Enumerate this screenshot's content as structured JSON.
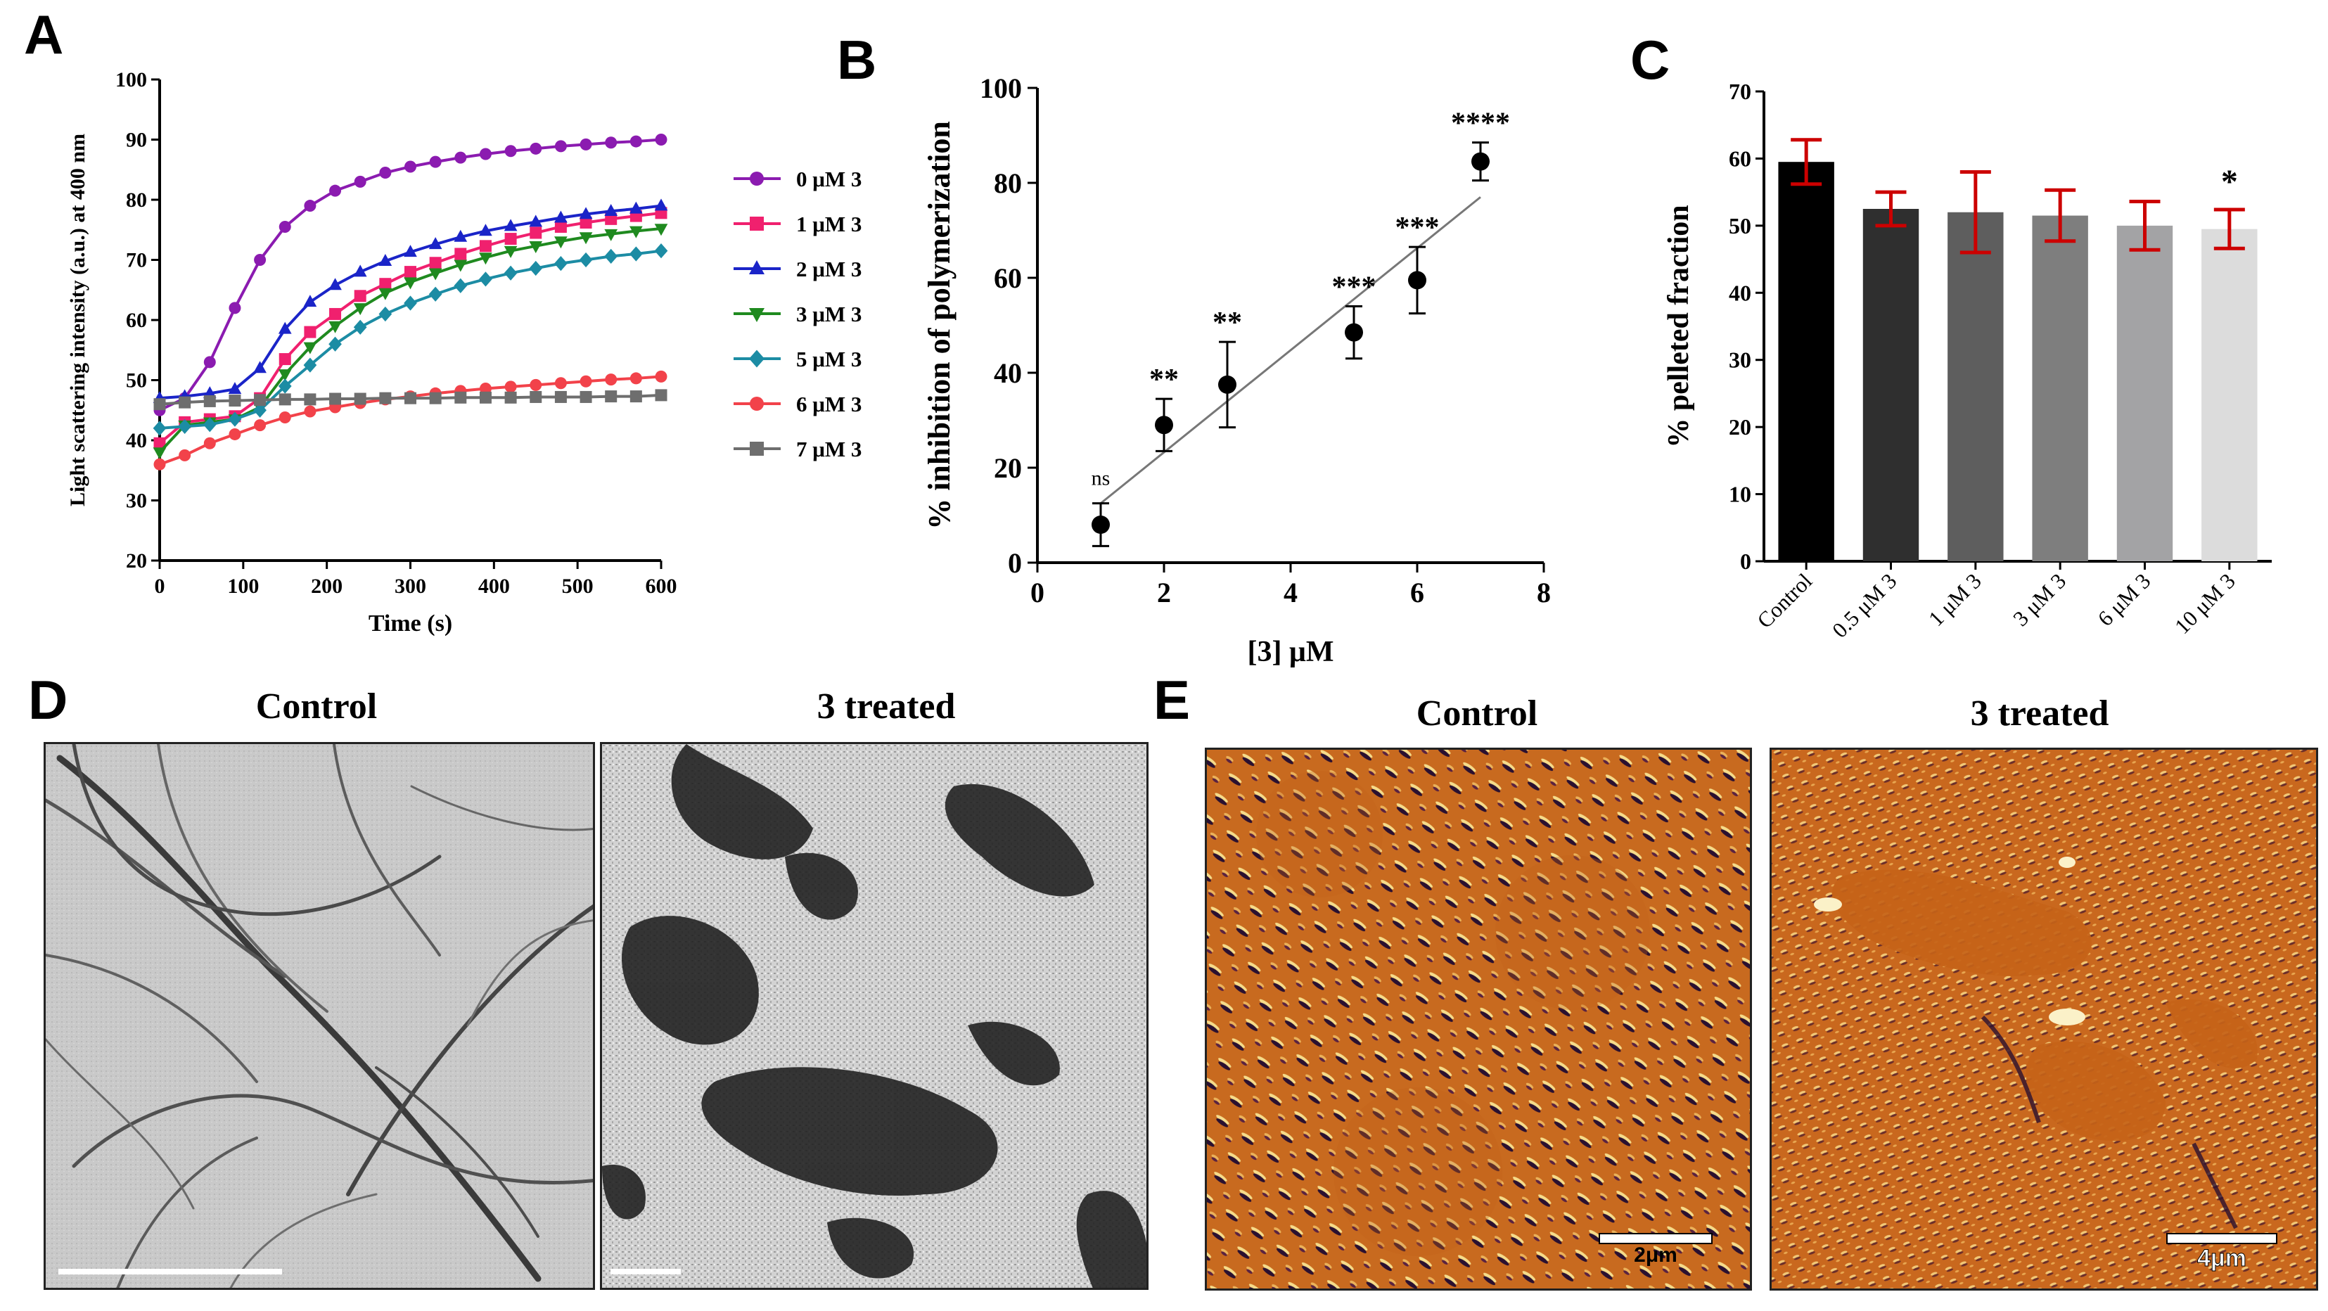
{
  "colors": {
    "series": [
      "#8B1BB0",
      "#F0206E",
      "#1A24C8",
      "#1F8A1F",
      "#1C8CA4",
      "#F2424A",
      "#6E6E6E"
    ],
    "bars": [
      "#000000",
      "#2F2F2F",
      "#5E5E5E",
      "#7E7E7E",
      "#A3A3A5",
      "#DCDCDC"
    ],
    "errorbar_c": "#CC0000",
    "afm_base": "#C9681E"
  },
  "panels": {
    "A": "A",
    "B": "B",
    "C": "C",
    "D": "D",
    "E": "E"
  },
  "panelD": {
    "left_title": "Control",
    "right_title": "3 treated"
  },
  "panelE": {
    "left_title": "Control",
    "right_title": "3 treated",
    "left_scale": "2μm",
    "right_scale": "4μm"
  },
  "chart_data": [
    {
      "id": "A",
      "type": "line",
      "xlabel": "Time (s)",
      "ylabel": "Light scattering intensity (a.u.) at 400 nm",
      "xlim": [
        0,
        600
      ],
      "ylim": [
        20,
        100
      ],
      "xticks": [
        0,
        100,
        200,
        300,
        400,
        500,
        600
      ],
      "yticks": [
        20,
        30,
        40,
        50,
        60,
        70,
        80,
        90,
        100
      ],
      "x": [
        0,
        30,
        60,
        90,
        120,
        150,
        180,
        210,
        240,
        270,
        300,
        330,
        360,
        390,
        420,
        450,
        480,
        510,
        540,
        570,
        600
      ],
      "series": [
        {
          "name": "0 μM 3",
          "marker": "circle",
          "values": [
            45,
            47,
            53,
            62,
            70,
            75.5,
            79,
            81.5,
            83,
            84.5,
            85.5,
            86.3,
            87,
            87.6,
            88.1,
            88.5,
            88.9,
            89.2,
            89.5,
            89.7,
            90
          ]
        },
        {
          "name": "1 μM 3",
          "marker": "square",
          "values": [
            39.5,
            43,
            43.5,
            44,
            47,
            53.5,
            58,
            61,
            64,
            66,
            68,
            69.5,
            71,
            72.3,
            73.5,
            74.5,
            75.5,
            76.2,
            76.8,
            77.3,
            77.8
          ]
        },
        {
          "name": "2 μM 3",
          "marker": "triangle-up",
          "values": [
            47,
            47.3,
            47.8,
            48.5,
            52,
            58.5,
            63,
            65.8,
            68,
            69.8,
            71.3,
            72.6,
            73.8,
            74.8,
            75.6,
            76.3,
            77,
            77.6,
            78.1,
            78.5,
            79
          ]
        },
        {
          "name": "3 μM 3",
          "marker": "triangle-down",
          "values": [
            38,
            42.5,
            43,
            43.5,
            45.5,
            51,
            55.5,
            59,
            62,
            64.5,
            66.3,
            67.8,
            69.2,
            70.4,
            71.5,
            72.3,
            73.1,
            73.8,
            74.3,
            74.8,
            75.2
          ]
        },
        {
          "name": "5 μM 3",
          "marker": "diamond",
          "values": [
            42,
            42.3,
            42.6,
            43.5,
            45,
            49,
            52.5,
            56,
            58.8,
            61,
            62.8,
            64.3,
            65.7,
            66.8,
            67.8,
            68.6,
            69.4,
            70,
            70.6,
            71,
            71.5
          ]
        },
        {
          "name": "6 μM 3",
          "marker": "circle",
          "values": [
            36,
            37.5,
            39.5,
            41,
            42.5,
            43.8,
            44.8,
            45.5,
            46.2,
            46.8,
            47.3,
            47.8,
            48.2,
            48.6,
            48.9,
            49.2,
            49.5,
            49.8,
            50.1,
            50.3,
            50.6
          ]
        },
        {
          "name": "7 μM 3",
          "marker": "square",
          "values": [
            46,
            46.3,
            46.5,
            46.6,
            46.7,
            46.8,
            46.8,
            46.9,
            46.9,
            47,
            47,
            47,
            47.1,
            47.1,
            47.1,
            47.2,
            47.2,
            47.2,
            47.3,
            47.3,
            47.5
          ]
        }
      ]
    },
    {
      "id": "B",
      "type": "scatter",
      "xlabel": "[3] μM",
      "ylabel": "% inhibition of polymerization",
      "xlim": [
        0,
        8
      ],
      "ylim": [
        0,
        100
      ],
      "xticks": [
        0,
        2,
        4,
        6,
        8
      ],
      "yticks": [
        0,
        20,
        40,
        60,
        80,
        100
      ],
      "points": [
        {
          "x": 1,
          "y": 8,
          "err": 4.5,
          "label": "ns"
        },
        {
          "x": 2,
          "y": 29,
          "err": 5.5,
          "label": "**"
        },
        {
          "x": 3,
          "y": 37.5,
          "err": 9,
          "label": "**"
        },
        {
          "x": 5,
          "y": 48.5,
          "err": 5.5,
          "label": "***"
        },
        {
          "x": 6,
          "y": 59.5,
          "err": 7,
          "label": "***"
        },
        {
          "x": 7,
          "y": 84.5,
          "err": 4,
          "label": "****"
        }
      ],
      "fit_line": {
        "x": [
          1,
          7
        ],
        "y": [
          12.5,
          77
        ]
      }
    },
    {
      "id": "C",
      "type": "bar",
      "ylabel": "% pelleted fraction",
      "ylim": [
        0,
        70
      ],
      "yticks": [
        0,
        10,
        20,
        30,
        40,
        50,
        60,
        70
      ],
      "categories": [
        "Control",
        "0.5 μM 3",
        "1 μM 3",
        "3 μM 3",
        "6 μM 3",
        "10 μM 3"
      ],
      "values": [
        59.5,
        52.5,
        52,
        51.5,
        50,
        49.5
      ],
      "errors": [
        3.3,
        2.5,
        6,
        3.8,
        3.6,
        2.9
      ],
      "annotations": [
        "",
        "",
        "",
        "",
        "",
        "*"
      ]
    }
  ]
}
